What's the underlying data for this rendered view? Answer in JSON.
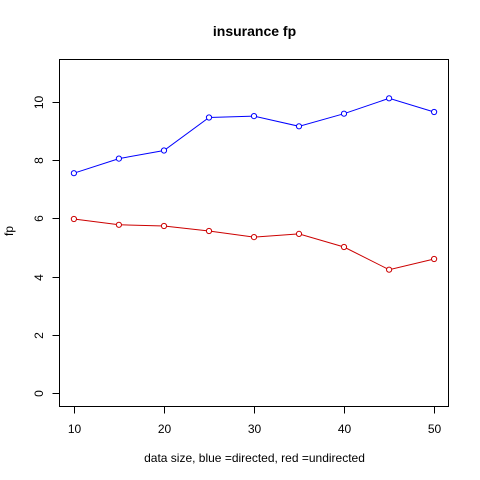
{
  "chart_data": {
    "type": "line",
    "title": "insurance fp",
    "xlabel": "data size,  blue =directed,  red =undirected",
    "ylabel": "fp",
    "x": [
      10,
      15,
      20,
      25,
      30,
      35,
      40,
      45,
      50
    ],
    "xticks": [
      10,
      20,
      30,
      40,
      50
    ],
    "yticks": [
      0,
      2,
      4,
      6,
      8,
      10
    ],
    "xlim": [
      8.4,
      51.6
    ],
    "ylim": [
      -0.45,
      11.45
    ],
    "grid": false,
    "marker": "open-circle",
    "series": [
      {
        "color": "#0000ff",
        "values": [
          7.55,
          8.05,
          8.33,
          9.46,
          9.51,
          9.16,
          9.59,
          10.12,
          9.65
        ]
      },
      {
        "color": "#cc0000",
        "values": [
          5.98,
          5.78,
          5.74,
          5.57,
          5.36,
          5.47,
          5.02,
          4.24,
          4.61
        ]
      }
    ]
  }
}
